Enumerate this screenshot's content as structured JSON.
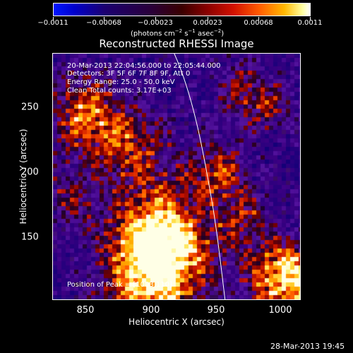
{
  "colorbar": {
    "tick_labels": [
      "−0.0011",
      "−0.00068",
      "−0.00023",
      "0.00023",
      "0.00068",
      "0.0011"
    ],
    "units_prefix": "(photons cm",
    "units_exp1": "−2",
    "units_mid": " s",
    "units_exp2": "−1",
    "units_mid2": " asec",
    "units_exp3": "−2",
    "units_suffix": ")"
  },
  "title": "Reconstructed RHESSI Image",
  "info_lines": [
    "20-Mar-2013 22:04:56.000 to 22:05:44.000",
    "Detectors: 3F 5F 6F 7F 8F 9F, Att 0",
    "Energy Range: 25.0 - 50.0 keV",
    "Clean    Total counts: 3.17E+03"
  ],
  "peak_text": "Position of Peak = [1003,110]",
  "x_axis": {
    "label": "Heliocentric X (arcsec)",
    "ticks": [
      "850",
      "900",
      "950",
      "1000"
    ]
  },
  "y_axis": {
    "label": "Heliocentric Y (arcsec)",
    "ticks": [
      "250",
      "200",
      "150"
    ]
  },
  "timestamp": "28-Mar-2013 19:45"
}
